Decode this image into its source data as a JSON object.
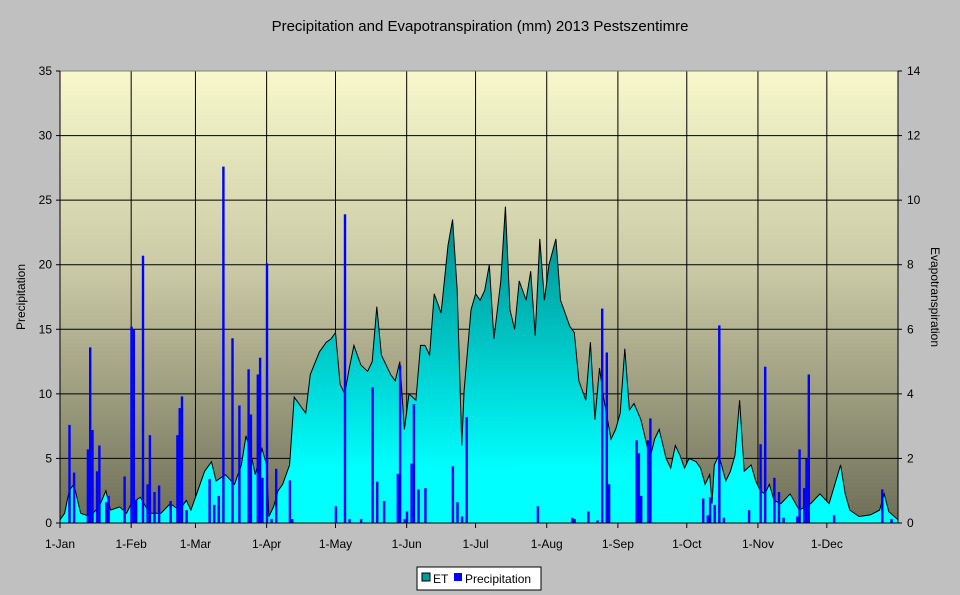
{
  "chart_data": {
    "type": "bar+area",
    "title": "Precipitation and Evapotranspiration (mm) 2013 Pestszentimre",
    "xlabel": "",
    "ylabel": "Precipitation",
    "y2label": "Evapotranspiration",
    "ylim": [
      0,
      35
    ],
    "y2lim": [
      0,
      14
    ],
    "yticks": [
      "0",
      "5",
      "10",
      "15",
      "20",
      "25",
      "30",
      "35"
    ],
    "y2ticks": [
      "0",
      "2",
      "4",
      "6",
      "8",
      "10",
      "12",
      "14"
    ],
    "xlim_days": [
      0,
      365
    ],
    "months": [
      {
        "label": "1-Jan",
        "day": 0
      },
      {
        "label": "1-Feb",
        "day": 31
      },
      {
        "label": "1-Mar",
        "day": 59
      },
      {
        "label": "1-Apr",
        "day": 90
      },
      {
        "label": "1-May",
        "day": 120
      },
      {
        "label": "1-Jun",
        "day": 151
      },
      {
        "label": "1-Jul",
        "day": 181
      },
      {
        "label": "1-Aug",
        "day": 212
      },
      {
        "label": "1-Sep",
        "day": 243
      },
      {
        "label": "1-Oct",
        "day": 273
      },
      {
        "label": "1-Nov",
        "day": 304
      },
      {
        "label": "1-Dec",
        "day": 334
      }
    ],
    "grid": true,
    "legend_position": "bottom",
    "legend": [
      "ET",
      "Precipitation"
    ],
    "colors": {
      "et_top": "#008B8B",
      "et_bottom": "#00FFFF",
      "precip": "#0000FF"
    },
    "series": [
      {
        "name": "ET",
        "axis": "right",
        "type": "area",
        "points": [
          [
            0,
            0.1
          ],
          [
            2,
            0.3
          ],
          [
            4,
            1.0
          ],
          [
            6,
            1.2
          ],
          [
            9,
            0.3
          ],
          [
            13,
            0.2
          ],
          [
            17,
            0.5
          ],
          [
            20,
            1.0
          ],
          [
            22,
            0.4
          ],
          [
            26,
            0.5
          ],
          [
            29,
            0.3
          ],
          [
            31,
            0.6
          ],
          [
            35,
            0.8
          ],
          [
            39,
            0.3
          ],
          [
            44,
            0.3
          ],
          [
            48,
            0.6
          ],
          [
            52,
            0.4
          ],
          [
            55,
            0.7
          ],
          [
            57,
            0.4
          ],
          [
            60,
            1.0
          ],
          [
            63,
            1.6
          ],
          [
            66,
            1.9
          ],
          [
            68,
            1.3
          ],
          [
            72,
            1.5
          ],
          [
            76,
            1.2
          ],
          [
            79,
            1.8
          ],
          [
            81,
            2.7
          ],
          [
            83,
            2.2
          ],
          [
            85,
            1.5
          ],
          [
            88,
            2.3
          ],
          [
            90,
            1.8
          ],
          [
            91,
            0.2
          ],
          [
            93,
            0.5
          ],
          [
            95,
            1.0
          ],
          [
            97,
            1.2
          ],
          [
            100,
            1.8
          ],
          [
            102,
            3.9
          ],
          [
            105,
            3.6
          ],
          [
            107,
            3.4
          ],
          [
            109,
            4.6
          ],
          [
            113,
            5.3
          ],
          [
            116,
            5.6
          ],
          [
            118,
            5.7
          ],
          [
            120,
            5.9
          ],
          [
            122,
            4.3
          ],
          [
            124,
            4.0
          ],
          [
            126,
            4.8
          ],
          [
            128,
            5.5
          ],
          [
            131,
            4.9
          ],
          [
            134,
            4.7
          ],
          [
            136,
            5.0
          ],
          [
            138,
            6.7
          ],
          [
            140,
            5.2
          ],
          [
            144,
            4.6
          ],
          [
            146,
            4.4
          ],
          [
            148,
            5.0
          ],
          [
            150,
            2.9
          ],
          [
            152,
            4.0
          ],
          [
            155,
            3.8
          ],
          [
            157,
            5.5
          ],
          [
            159,
            5.5
          ],
          [
            161,
            5.2
          ],
          [
            163,
            7.1
          ],
          [
            166,
            6.5
          ],
          [
            169,
            8.6
          ],
          [
            171,
            9.4
          ],
          [
            173,
            7.2
          ],
          [
            175,
            2.4
          ],
          [
            176,
            4.1
          ],
          [
            179,
            6.6
          ],
          [
            181,
            7.1
          ],
          [
            183,
            6.9
          ],
          [
            185,
            7.2
          ],
          [
            187,
            8.0
          ],
          [
            189,
            5.7
          ],
          [
            192,
            7.5
          ],
          [
            194,
            9.8
          ],
          [
            196,
            6.6
          ],
          [
            198,
            6.0
          ],
          [
            200,
            7.5
          ],
          [
            203,
            6.9
          ],
          [
            205,
            7.8
          ],
          [
            207,
            5.8
          ],
          [
            209,
            8.8
          ],
          [
            211,
            6.9
          ],
          [
            213,
            8.0
          ],
          [
            216,
            8.8
          ],
          [
            218,
            6.9
          ],
          [
            220,
            6.5
          ],
          [
            222,
            6.1
          ],
          [
            224,
            5.9
          ],
          [
            226,
            4.4
          ],
          [
            229,
            3.8
          ],
          [
            231,
            5.6
          ],
          [
            233,
            3.2
          ],
          [
            235,
            4.8
          ],
          [
            237,
            3.8
          ],
          [
            240,
            2.6
          ],
          [
            242,
            2.9
          ],
          [
            244,
            3.4
          ],
          [
            246,
            5.4
          ],
          [
            248,
            3.5
          ],
          [
            250,
            3.7
          ],
          [
            253,
            3.2
          ],
          [
            255,
            2.6
          ],
          [
            257,
            2.0
          ],
          [
            259,
            2.6
          ],
          [
            261,
            2.9
          ],
          [
            264,
            2.0
          ],
          [
            266,
            1.7
          ],
          [
            268,
            2.4
          ],
          [
            270,
            2.1
          ],
          [
            272,
            1.7
          ],
          [
            274,
            2.0
          ],
          [
            277,
            1.9
          ],
          [
            279,
            1.7
          ],
          [
            281,
            1.2
          ],
          [
            283,
            1.5
          ],
          [
            284,
            0.6
          ],
          [
            285,
            1.8
          ],
          [
            287,
            2.1
          ],
          [
            290,
            1.3
          ],
          [
            292,
            1.6
          ],
          [
            294,
            2.1
          ],
          [
            296,
            3.8
          ],
          [
            298,
            1.6
          ],
          [
            301,
            1.8
          ],
          [
            303,
            1.3
          ],
          [
            305,
            1.0
          ],
          [
            307,
            0.9
          ],
          [
            309,
            1.2
          ],
          [
            311,
            0.7
          ],
          [
            314,
            0.6
          ],
          [
            318,
            0.9
          ],
          [
            322,
            0.4
          ],
          [
            327,
            0.6
          ],
          [
            331,
            0.9
          ],
          [
            335,
            0.6
          ],
          [
            340,
            1.8
          ],
          [
            342,
            0.9
          ],
          [
            344,
            0.4
          ],
          [
            348,
            0.2
          ],
          [
            353,
            0.25
          ],
          [
            357,
            0.4
          ],
          [
            359,
            0.9
          ],
          [
            361,
            0.35
          ],
          [
            365,
            0.1
          ]
        ]
      },
      {
        "name": "Precipitation",
        "axis": "left",
        "type": "bar",
        "points": [
          [
            4,
            7.6
          ],
          [
            6,
            3.9
          ],
          [
            12,
            5.7
          ],
          [
            13,
            13.6
          ],
          [
            14,
            7.2
          ],
          [
            16,
            4.0
          ],
          [
            17,
            6.0
          ],
          [
            20,
            1.6
          ],
          [
            21,
            2.1
          ],
          [
            28,
            3.6
          ],
          [
            31,
            15.2
          ],
          [
            32,
            15.0
          ],
          [
            33,
            1.8
          ],
          [
            36,
            20.7
          ],
          [
            38,
            3.0
          ],
          [
            39,
            6.8
          ],
          [
            41,
            2.4
          ],
          [
            43,
            2.9
          ],
          [
            48,
            1.7
          ],
          [
            51,
            6.8
          ],
          [
            52,
            8.9
          ],
          [
            53,
            9.8
          ],
          [
            55,
            1.0
          ],
          [
            65,
            3.4
          ],
          [
            67,
            1.4
          ],
          [
            69,
            2.1
          ],
          [
            71,
            27.6
          ],
          [
            75,
            14.3
          ],
          [
            78,
            9.1
          ],
          [
            82,
            11.9
          ],
          [
            83,
            8.4
          ],
          [
            86,
            11.5
          ],
          [
            87,
            12.8
          ],
          [
            88,
            3.5
          ],
          [
            90,
            20.1
          ],
          [
            92,
            0.3
          ],
          [
            94,
            4.2
          ],
          [
            100,
            3.3
          ],
          [
            101,
            0.3
          ],
          [
            120,
            1.3
          ],
          [
            124,
            23.9
          ],
          [
            126,
            0.3
          ],
          [
            131,
            0.3
          ],
          [
            136,
            10.5
          ],
          [
            138,
            3.2
          ],
          [
            141,
            1.7
          ],
          [
            147,
            3.8
          ],
          [
            148,
            12.2
          ],
          [
            150,
            0.3
          ],
          [
            151,
            0.9
          ],
          [
            153,
            4.6
          ],
          [
            154,
            9.2
          ],
          [
            156,
            2.6
          ],
          [
            159,
            2.7
          ],
          [
            171,
            4.4
          ],
          [
            173,
            1.6
          ],
          [
            175,
            0.5
          ],
          [
            177,
            8.2
          ],
          [
            208,
            1.3
          ],
          [
            223,
            0.4
          ],
          [
            224,
            0.3
          ],
          [
            230,
            0.9
          ],
          [
            234,
            0.2
          ],
          [
            236,
            16.6
          ],
          [
            238,
            13.2
          ],
          [
            239,
            3.0
          ],
          [
            251,
            6.4
          ],
          [
            252,
            5.4
          ],
          [
            253,
            2.1
          ],
          [
            256,
            6.4
          ],
          [
            257,
            8.1
          ],
          [
            280,
            1.9
          ],
          [
            282,
            0.6
          ],
          [
            283,
            2.0
          ],
          [
            285,
            1.4
          ],
          [
            287,
            15.3
          ],
          [
            289,
            0.4
          ],
          [
            300,
            1.0
          ],
          [
            305,
            6.1
          ],
          [
            307,
            12.1
          ],
          [
            311,
            3.5
          ],
          [
            313,
            2.4
          ],
          [
            315,
            0.4
          ],
          [
            321,
            0.5
          ],
          [
            322,
            5.7
          ],
          [
            324,
            2.7
          ],
          [
            325,
            5.0
          ],
          [
            326,
            11.5
          ],
          [
            337,
            0.6
          ],
          [
            358,
            2.6
          ],
          [
            362,
            0.3
          ]
        ]
      }
    ]
  }
}
